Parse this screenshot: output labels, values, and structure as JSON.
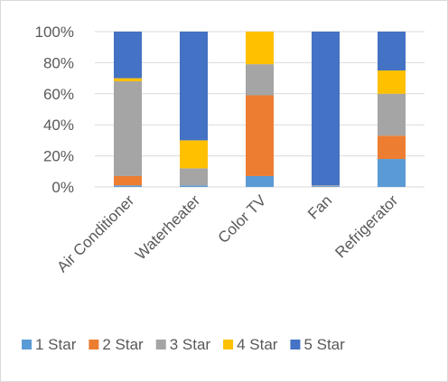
{
  "chart_data": {
    "type": "bar",
    "stacked": true,
    "percent": true,
    "title": "",
    "xlabel": "",
    "ylabel": "",
    "ylim": [
      0,
      100
    ],
    "yticks": [
      "0%",
      "20%",
      "40%",
      "60%",
      "80%",
      "100%"
    ],
    "grid": true,
    "legend_position": "bottom",
    "categories": [
      "Air Conditioner",
      "Waterheater",
      "Color TV",
      "Fan",
      "Refrigerator"
    ],
    "series": [
      {
        "name": "1 Star",
        "color": "#5B9BD5",
        "values": [
          1,
          1,
          7,
          0.5,
          18
        ]
      },
      {
        "name": "2 Star",
        "color": "#ED7D31",
        "values": [
          6,
          0,
          52,
          0,
          15
        ]
      },
      {
        "name": "3 Star",
        "color": "#A5A5A5",
        "values": [
          61,
          11,
          20,
          0.5,
          27
        ]
      },
      {
        "name": "4 Star",
        "color": "#FFC000",
        "values": [
          2,
          18,
          21,
          0,
          15
        ]
      },
      {
        "name": "5 Star",
        "color": "#4472C4",
        "values": [
          30,
          70,
          0,
          99,
          25
        ]
      }
    ]
  }
}
